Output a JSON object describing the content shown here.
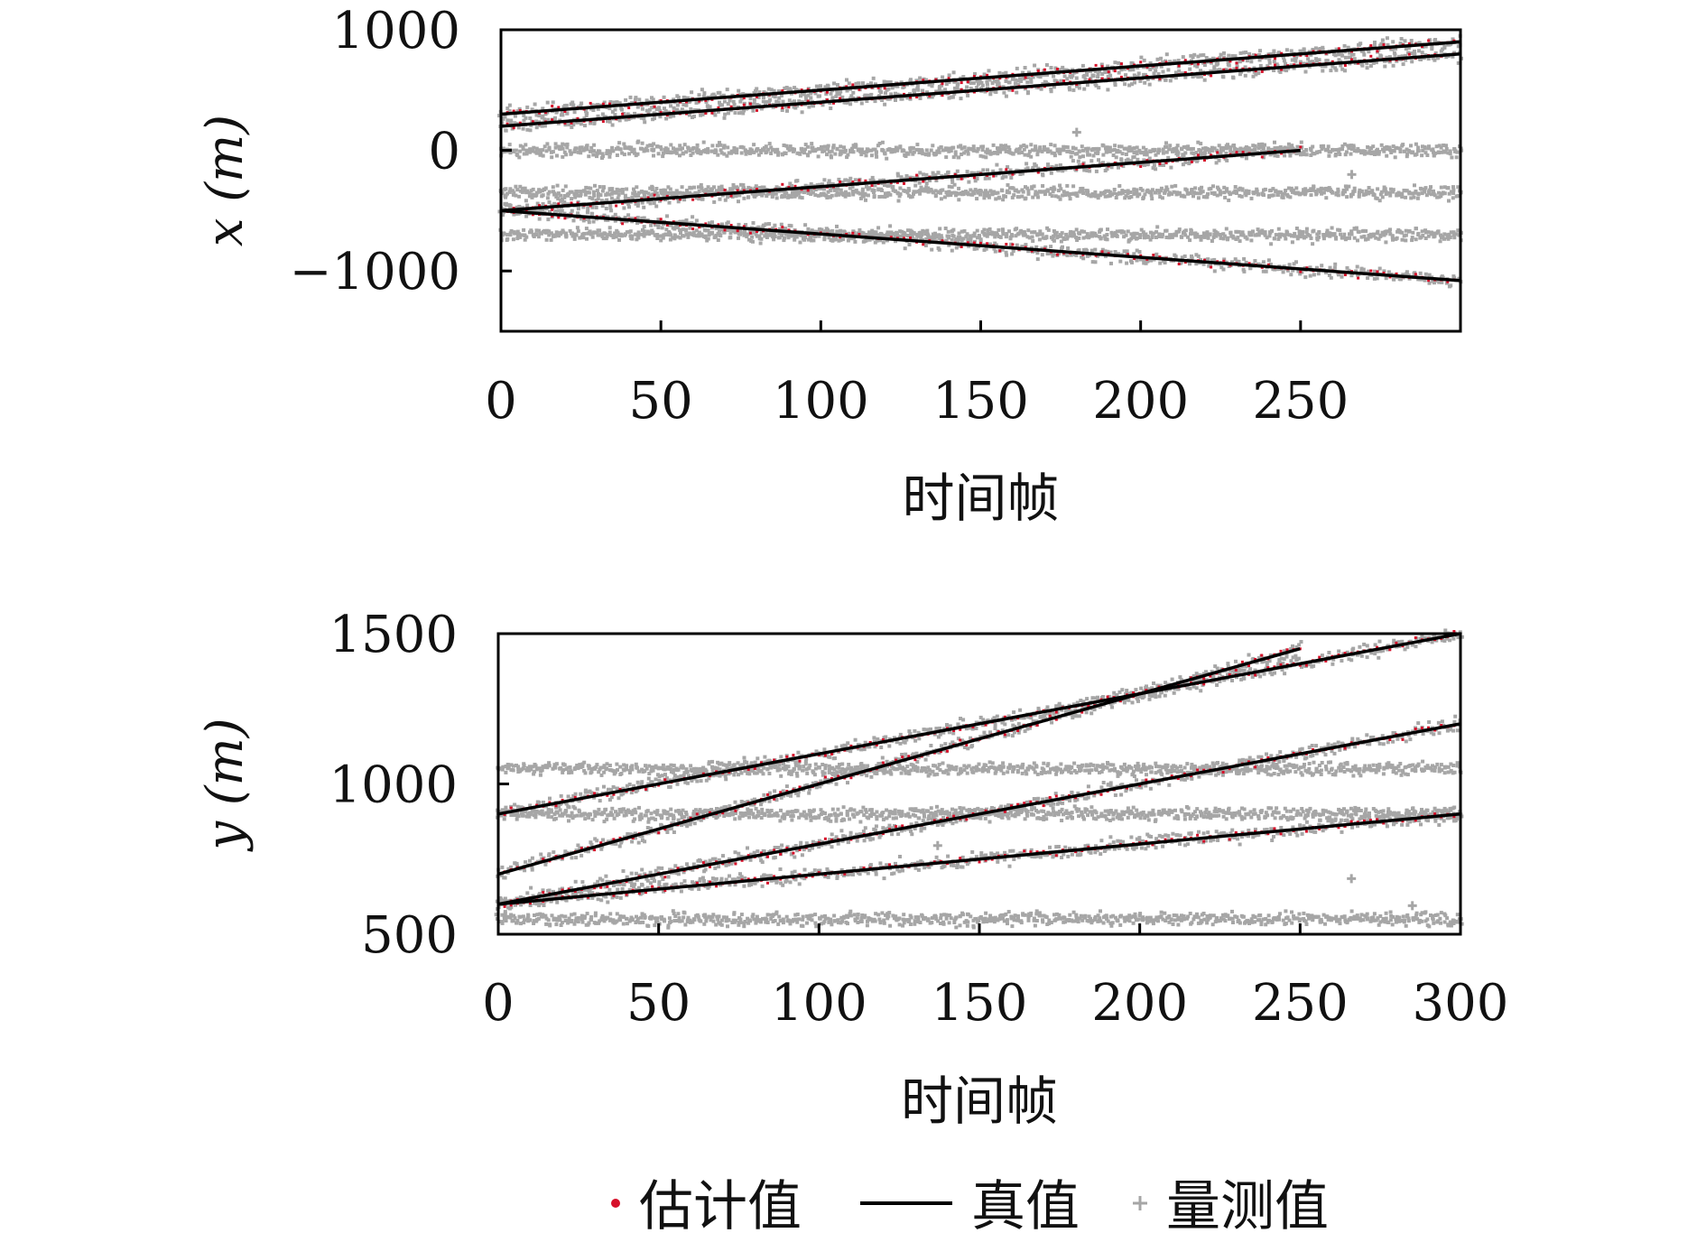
{
  "chart_data": [
    {
      "type": "line",
      "ylabel": "x (m)",
      "xlabel": "时间帧",
      "xlim": [
        0,
        300
      ],
      "ylim": [
        -1500,
        1000
      ],
      "xticks": [
        0,
        50,
        100,
        150,
        200,
        250
      ],
      "yticks": [
        -1000,
        0,
        1000
      ],
      "ytick_labels": [
        "−1000",
        "0",
        "1000"
      ],
      "true_tracks": [
        {
          "x": [
            0,
            300
          ],
          "y": [
            300,
            900
          ]
        },
        {
          "x": [
            0,
            300
          ],
          "y": [
            200,
            800
          ]
        },
        {
          "x": [
            0,
            250
          ],
          "y": [
            -500,
            0
          ]
        },
        {
          "x": [
            0,
            300
          ],
          "y": [
            -500,
            -1080
          ]
        }
      ],
      "clutter_bands": [
        {
          "x": [
            0,
            300
          ],
          "y": 0
        },
        {
          "x": [
            0,
            300
          ],
          "y": -350
        },
        {
          "x": [
            0,
            300
          ],
          "y": -700
        }
      ],
      "outliers": [
        {
          "x": 180,
          "y": 150
        },
        {
          "x": 266,
          "y": -200
        }
      ]
    },
    {
      "type": "line",
      "ylabel": "y (m)",
      "xlabel": "时间帧",
      "xlim": [
        0,
        300
      ],
      "ylim": [
        500,
        1500
      ],
      "xticks": [
        0,
        50,
        100,
        150,
        200,
        250,
        300
      ],
      "yticks": [
        500,
        1000,
        1500
      ],
      "ytick_labels": [
        "500",
        "1000",
        "1500"
      ],
      "true_tracks": [
        {
          "x": [
            0,
            300
          ],
          "y": [
            900,
            1500
          ]
        },
        {
          "x": [
            0,
            250
          ],
          "y": [
            700,
            1450
          ]
        },
        {
          "x": [
            0,
            300
          ],
          "y": [
            600,
            1200
          ]
        },
        {
          "x": [
            0,
            300
          ],
          "y": [
            600,
            900
          ]
        }
      ],
      "clutter_bands": [
        {
          "x": [
            0,
            300
          ],
          "y": 1050
        },
        {
          "x": [
            0,
            300
          ],
          "y": 900
        },
        {
          "x": [
            0,
            300
          ],
          "y": 550
        }
      ],
      "outliers": [
        {
          "x": 266,
          "y": 685
        },
        {
          "x": 285,
          "y": 595
        },
        {
          "x": 137,
          "y": 795
        }
      ]
    }
  ],
  "legend": {
    "estimate_label": "估计值",
    "truth_label": "真值",
    "measurement_label": "量测值"
  },
  "colors": {
    "estimate": "#d6102a",
    "truth": "#000000",
    "measurement": "#a6a6a6",
    "axes": "#000000"
  }
}
